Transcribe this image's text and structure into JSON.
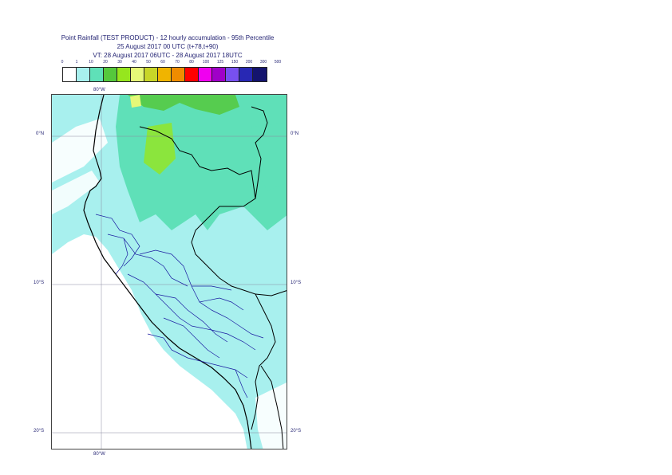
{
  "header": {
    "line1": "Point Rainfall (TEST PRODUCT) - 12 hourly accumulation - 95th Percentile",
    "line2": "25 August 2017 00 UTC (t+78,t+90)",
    "line3": "VT: 28 August 2017 06UTC - 28 August 2017 18UTC"
  },
  "legend": {
    "labels": [
      "0",
      "1",
      "10",
      "20",
      "30",
      "40",
      "50",
      "60",
      "70",
      "80",
      "100",
      "125",
      "150",
      "200",
      "300",
      "500"
    ],
    "colors": [
      "#ffffff",
      "#a8f0ee",
      "#5fe0b8",
      "#55c83c",
      "#96e61e",
      "#e6f878",
      "#c8d628",
      "#f0b400",
      "#f08c00",
      "#ff0000",
      "#f000f0",
      "#a000c8",
      "#7850f0",
      "#2828b4",
      "#14146e"
    ]
  },
  "map": {
    "lon_top": "80°W",
    "lon_bottom": "80°W",
    "lat_labels_left": [
      "0°N",
      "10°S",
      "20°S"
    ],
    "lat_labels_right": [
      "0°N",
      "10°S",
      "20°S"
    ]
  }
}
